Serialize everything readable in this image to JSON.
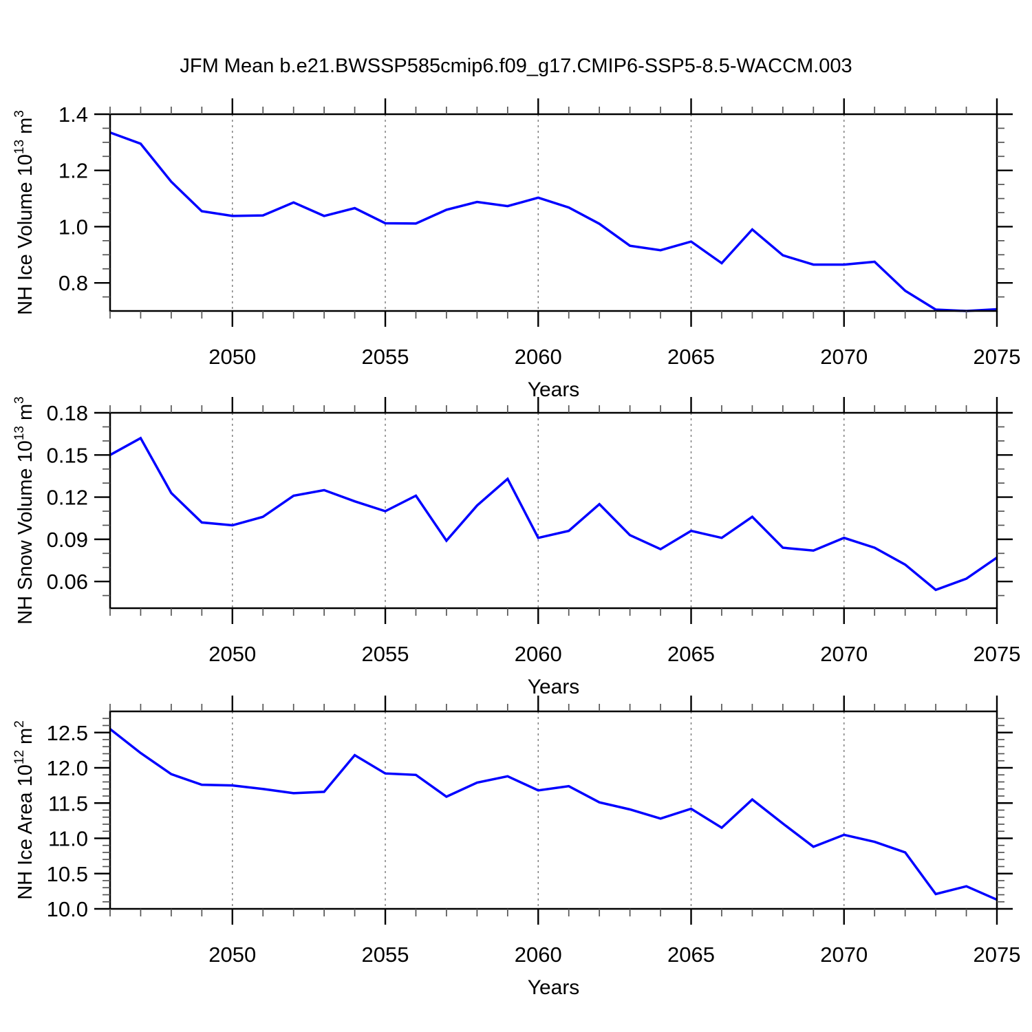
{
  "title": "JFM Mean b.e21.BWSSP585cmip6.f09_g17.CMIP6-SSP5-8.5-WACCM.003",
  "line_color": "#0000ff",
  "grid_color": "#777777",
  "x_axis": {
    "label": "Years",
    "xlim": [
      2046,
      2075
    ],
    "major_ticks": [
      2050,
      2055,
      2060,
      2065,
      2070,
      2075
    ],
    "tick_labels": [
      "2050",
      "2055",
      "2060",
      "2065",
      "2070",
      "2075"
    ],
    "minor_step": 1,
    "grid_years": [
      2050,
      2055,
      2060,
      2065,
      2070
    ]
  },
  "chart_data": [
    {
      "type": "line",
      "name": "nh-ice-volume",
      "ylabel": "NH Ice Volume 10^{13} m^{3}",
      "ylim": [
        0.7,
        1.4
      ],
      "yticks": [
        0.8,
        1.0,
        1.2,
        1.4
      ],
      "ytick_labels": [
        "0.8",
        "1.0",
        "1.2",
        "1.4"
      ],
      "y_minor_step": 0.05,
      "xlabel": "Years",
      "x": [
        2046,
        2047,
        2048,
        2049,
        2050,
        2051,
        2052,
        2053,
        2054,
        2055,
        2056,
        2057,
        2058,
        2059,
        2060,
        2061,
        2062,
        2063,
        2064,
        2065,
        2066,
        2067,
        2068,
        2069,
        2070,
        2071,
        2072,
        2073,
        2074,
        2075
      ],
      "values": [
        1.335,
        1.295,
        1.16,
        1.055,
        1.038,
        1.04,
        1.086,
        1.038,
        1.066,
        1.012,
        1.011,
        1.06,
        1.088,
        1.073,
        1.103,
        1.068,
        1.01,
        0.932,
        0.916,
        0.947,
        0.87,
        0.99,
        0.898,
        0.865,
        0.865,
        0.875,
        0.772,
        0.705,
        0.7,
        0.706
      ]
    },
    {
      "type": "line",
      "name": "nh-snow-volume",
      "ylabel": "NH Snow Volume 10^{13} m^{3}",
      "ylim": [
        0.041,
        0.18
      ],
      "yticks": [
        0.06,
        0.09,
        0.12,
        0.15,
        0.18
      ],
      "ytick_labels": [
        "0.06",
        "0.09",
        "0.12",
        "0.15",
        "0.18"
      ],
      "y_minor_step": 0.01,
      "xlabel": "Years",
      "x": [
        2046,
        2047,
        2048,
        2049,
        2050,
        2051,
        2052,
        2053,
        2054,
        2055,
        2056,
        2057,
        2058,
        2059,
        2060,
        2061,
        2062,
        2063,
        2064,
        2065,
        2066,
        2067,
        2068,
        2069,
        2070,
        2071,
        2072,
        2073,
        2074,
        2075
      ],
      "values": [
        0.15,
        0.162,
        0.123,
        0.102,
        0.1,
        0.106,
        0.121,
        0.125,
        0.117,
        0.11,
        0.121,
        0.089,
        0.114,
        0.133,
        0.091,
        0.096,
        0.115,
        0.093,
        0.083,
        0.096,
        0.091,
        0.106,
        0.084,
        0.082,
        0.091,
        0.084,
        0.072,
        0.054,
        0.062,
        0.077
      ]
    },
    {
      "type": "line",
      "name": "nh-ice-area",
      "ylabel": "NH Ice Area 10^{12} m^{2}",
      "ylim": [
        10.0,
        12.8
      ],
      "yticks": [
        10.0,
        10.5,
        11.0,
        11.5,
        12.0,
        12.5
      ],
      "ytick_labels": [
        "10.0",
        "10.5",
        "11.0",
        "11.5",
        "12.0",
        "12.5"
      ],
      "y_minor_step": 0.1,
      "xlabel": "Years",
      "x": [
        2046,
        2047,
        2048,
        2049,
        2050,
        2051,
        2052,
        2053,
        2054,
        2055,
        2056,
        2057,
        2058,
        2059,
        2060,
        2061,
        2062,
        2063,
        2064,
        2065,
        2066,
        2067,
        2068,
        2069,
        2070,
        2071,
        2072,
        2073,
        2074,
        2075
      ],
      "values": [
        12.55,
        12.21,
        11.91,
        11.76,
        11.75,
        11.7,
        11.64,
        11.66,
        12.18,
        11.92,
        11.9,
        11.59,
        11.79,
        11.88,
        11.68,
        11.74,
        11.51,
        11.41,
        11.28,
        11.42,
        11.15,
        11.55,
        11.21,
        10.88,
        11.05,
        10.95,
        10.8,
        10.21,
        10.32,
        10.13
      ]
    }
  ]
}
